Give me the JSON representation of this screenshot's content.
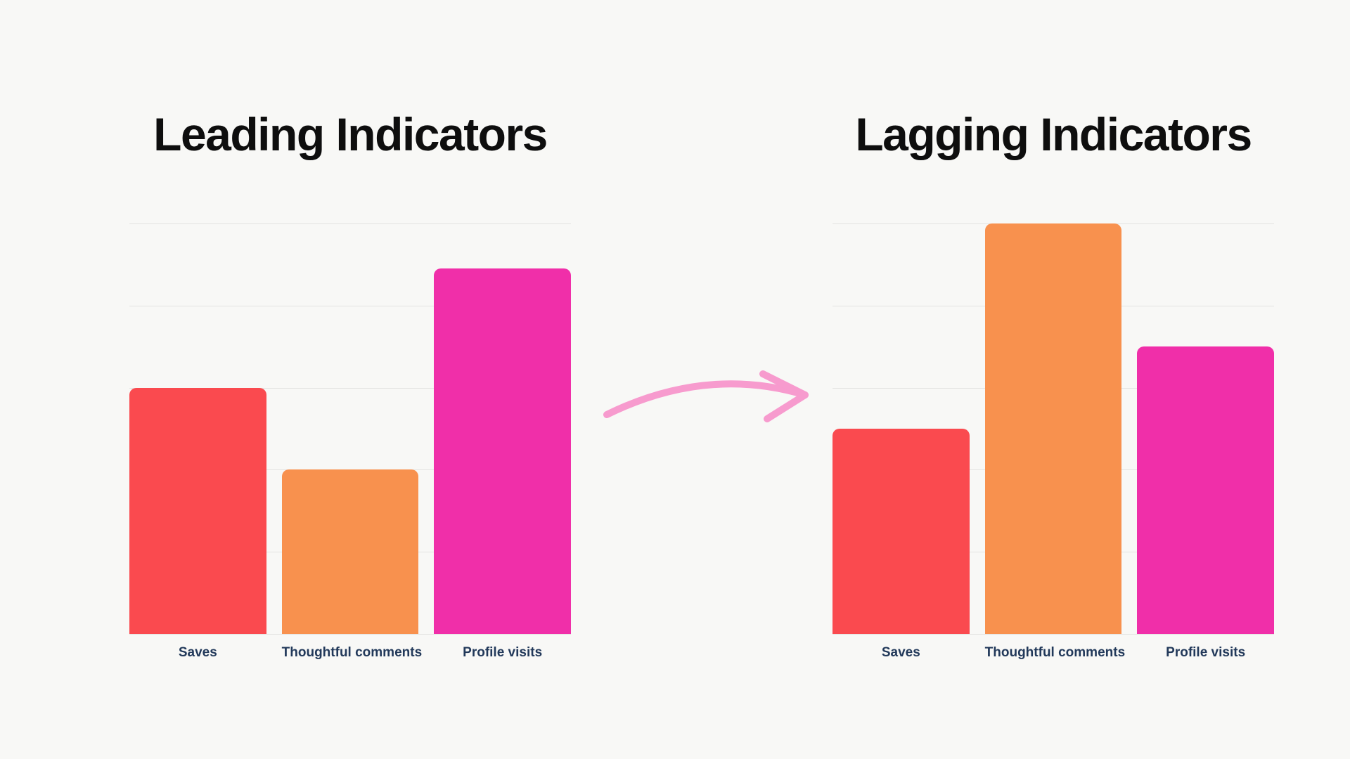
{
  "colors": {
    "background": "#f8f8f6",
    "title": "#0e0e0e",
    "label": "#22395a",
    "gridline": "#e3e3e1",
    "arrow": "#f79bce",
    "red": "#fa4a4f",
    "orange": "#f8914e",
    "magenta": "#f02fa9"
  },
  "arrow": {
    "icon": "curved-arrow-right"
  },
  "chart_data": [
    {
      "type": "bar",
      "title": "Leading Indicators",
      "categories": [
        "Saves",
        "Thoughtful comments",
        "Profile visits"
      ],
      "values": [
        60,
        40,
        89
      ],
      "bar_colors": [
        "#fa4a4f",
        "#f8914e",
        "#f02fa9"
      ],
      "xlabel": "",
      "ylabel": "",
      "ylim": [
        0,
        100
      ],
      "value_unit": "relative (no y-axis tick labels shown)",
      "gridline_count": 6,
      "grid": "horizontal",
      "legend": false
    },
    {
      "type": "bar",
      "title": "Lagging Indicators",
      "categories": [
        "Saves",
        "Thoughtful comments",
        "Profile visits"
      ],
      "values": [
        50,
        100,
        70
      ],
      "bar_colors": [
        "#fa4a4f",
        "#f8914e",
        "#f02fa9"
      ],
      "xlabel": "",
      "ylabel": "",
      "ylim": [
        0,
        100
      ],
      "value_unit": "relative (no y-axis tick labels shown)",
      "gridline_count": 6,
      "grid": "horizontal",
      "legend": false
    }
  ]
}
